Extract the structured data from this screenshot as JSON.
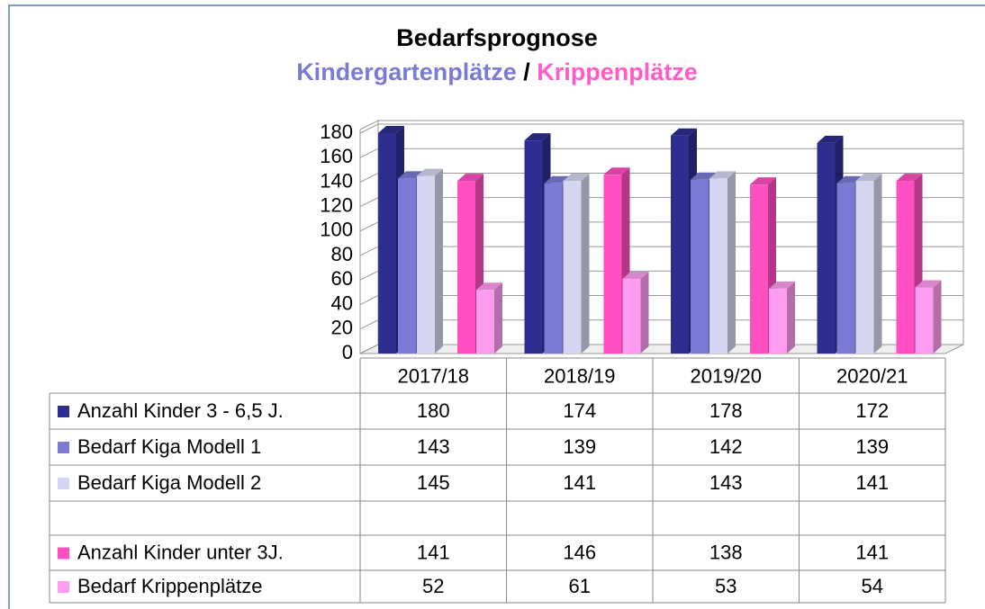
{
  "chart_data": {
    "type": "bar",
    "title": "Bedarfsprognose",
    "subtitle": [
      {
        "text": "Kindergartenplätze",
        "color": "#7b7bd4"
      },
      {
        "text": "/",
        "color": "#000000"
      },
      {
        "text": "Krippenplätze",
        "color": "#ff5cc8"
      }
    ],
    "categories": [
      "2017/18",
      "2018/19",
      "2019/20",
      "2020/21"
    ],
    "series": [
      {
        "name": "Anzahl Kinder 3 - 6,5 J.",
        "color": "#2e2e90",
        "values": [
          180,
          174,
          178,
          172
        ]
      },
      {
        "name": "Bedarf Kiga Modell 1",
        "color": "#7b7bd6",
        "values": [
          143,
          139,
          142,
          139
        ]
      },
      {
        "name": "Bedarf Kiga Modell 2",
        "color": "#d6d6f2",
        "values": [
          145,
          141,
          143,
          141
        ]
      },
      {
        "name": "Anzahl Kinder unter 3J.",
        "color": "#ff4fc0",
        "values": [
          141,
          146,
          138,
          141
        ]
      },
      {
        "name": "Bedarf Krippenplätze",
        "color": "#ff9cf0",
        "values": [
          52,
          61,
          53,
          54
        ]
      }
    ],
    "ylim": [
      0,
      180
    ],
    "yticks": [
      0,
      20,
      40,
      60,
      80,
      100,
      120,
      140,
      160,
      180
    ],
    "grid": true
  }
}
